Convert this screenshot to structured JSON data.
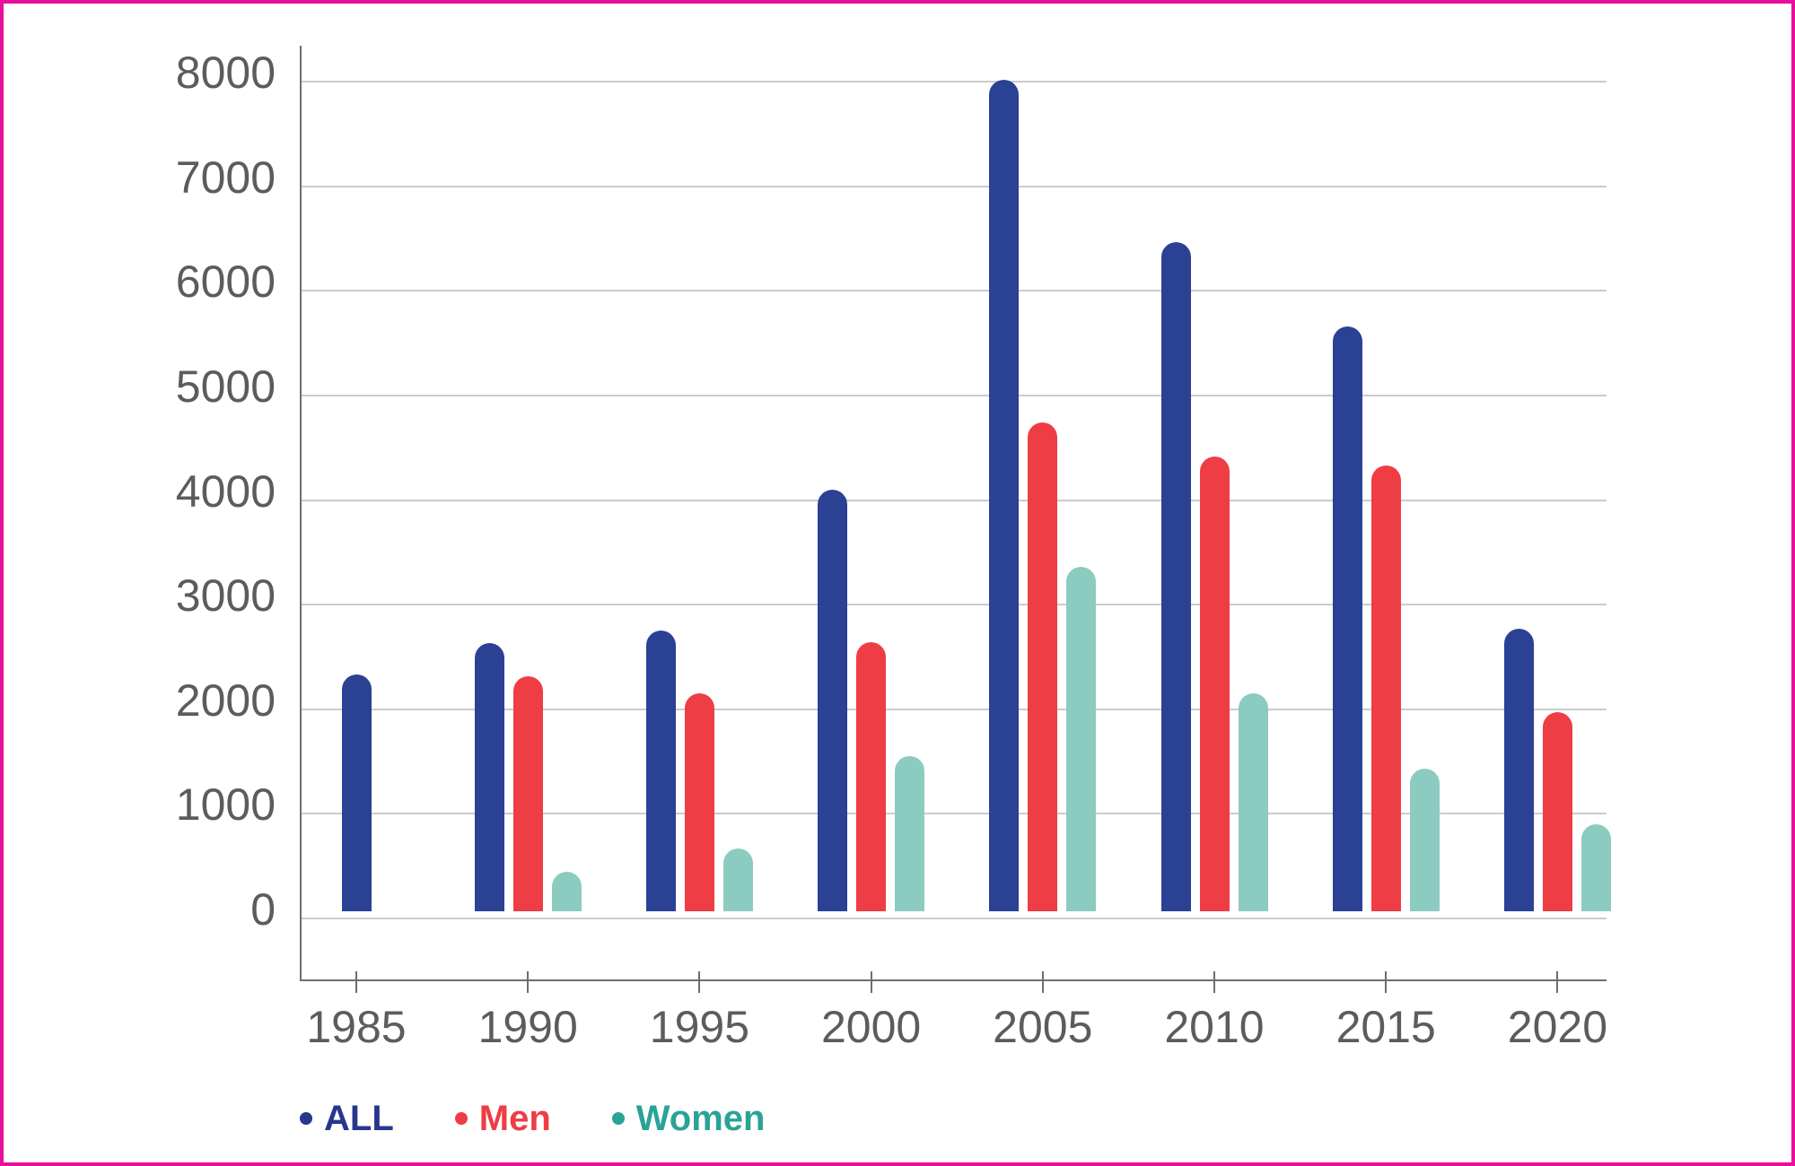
{
  "chart_data": {
    "type": "bar",
    "title": "",
    "categories": [
      "1985",
      "1990",
      "1995",
      "2000",
      "2005",
      "2010",
      "2015",
      "2020"
    ],
    "series": [
      {
        "name": "ALL",
        "color": "#2a4194",
        "legend_color": "#28368e",
        "values": [
          2260,
          2560,
          2680,
          4030,
          7950,
          6400,
          5590,
          2700
        ]
      },
      {
        "name": "Men",
        "color": "#ee3d45",
        "legend_color": "#ee3d45",
        "values": [
          null,
          2250,
          2080,
          2570,
          4670,
          4350,
          4260,
          1900
        ]
      },
      {
        "name": "Women",
        "color": "#8ccbbf",
        "legend_color": "#2aa396",
        "values": [
          null,
          380,
          600,
          1480,
          3290,
          2080,
          1360,
          830
        ]
      }
    ],
    "y_ticks": [
      0,
      1000,
      2000,
      3000,
      4000,
      5000,
      6000,
      7000,
      8000
    ],
    "ylim": [
      0,
      8000
    ],
    "xlabel": "",
    "ylabel": "",
    "grid": "horizontal",
    "legend_position": "bottom-left"
  },
  "frame": {
    "border_color": "#e90f9d"
  },
  "axes": {
    "axis_line_color": "#6e6e6e",
    "grid_color": "#cbcbcb",
    "tick_label_color": "#5c5c5c"
  }
}
